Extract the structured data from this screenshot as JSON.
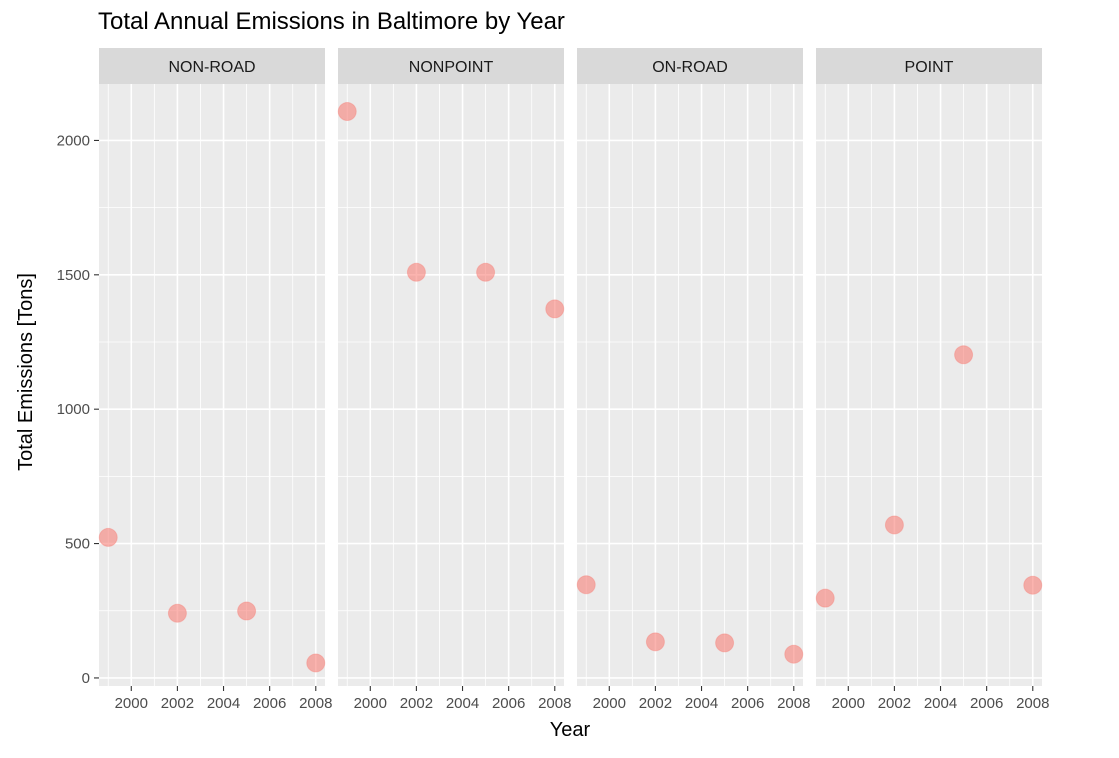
{
  "chart_data": {
    "type": "scatter",
    "title": "Total Annual Emissions in Baltimore by Year",
    "xlabel": "Year",
    "ylabel": "Total Emissions [Tons]",
    "xlim": [
      1998.6,
      2008.4
    ],
    "ylim": [
      -30,
      2210
    ],
    "x_ticks": [
      2000,
      2002,
      2004,
      2006,
      2008
    ],
    "y_ticks": [
      0,
      500,
      1000,
      1500,
      2000
    ],
    "grid": true,
    "legend": "none",
    "point_color": "#F8766D",
    "panel_background": "#EBEBEB",
    "strip_background": "#D9D9D9",
    "facets": [
      {
        "name": "NON-ROAD",
        "points": [
          {
            "x": 1999,
            "y": 522.9
          },
          {
            "x": 2002,
            "y": 240.8
          },
          {
            "x": 2005,
            "y": 248.9
          },
          {
            "x": 2008,
            "y": 55.8
          }
        ]
      },
      {
        "name": "NONPOINT",
        "points": [
          {
            "x": 1999,
            "y": 2107.6
          },
          {
            "x": 2002,
            "y": 1509.5
          },
          {
            "x": 2005,
            "y": 1509.5
          },
          {
            "x": 2008,
            "y": 1373.2
          }
        ]
      },
      {
        "name": "ON-ROAD",
        "points": [
          {
            "x": 1999,
            "y": 346.8
          },
          {
            "x": 2002,
            "y": 134.3
          },
          {
            "x": 2005,
            "y": 130.4
          },
          {
            "x": 2008,
            "y": 88.3
          }
        ]
      },
      {
        "name": "POINT",
        "points": [
          {
            "x": 1999,
            "y": 296.8
          },
          {
            "x": 2002,
            "y": 569.3
          },
          {
            "x": 2005,
            "y": 1202.5
          },
          {
            "x": 2008,
            "y": 345.0
          }
        ]
      }
    ]
  }
}
